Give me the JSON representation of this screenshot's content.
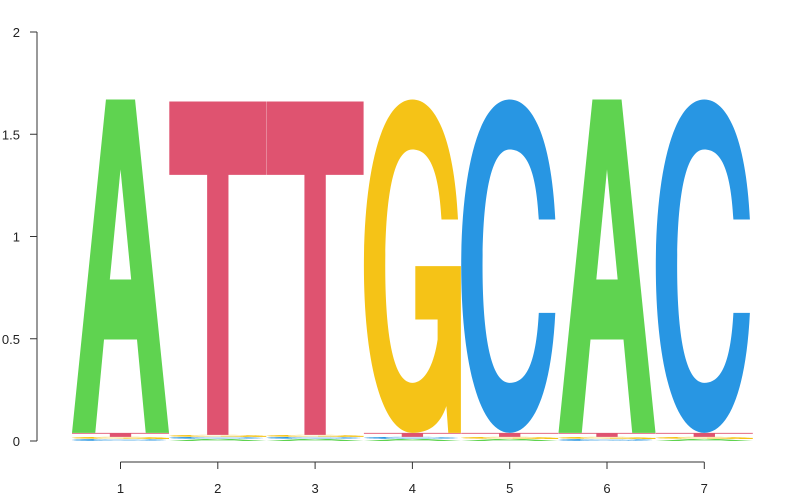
{
  "chart_data": {
    "type": "sequence-logo",
    "title": "",
    "xlabel": "",
    "ylabel": "",
    "ylim": [
      0,
      2
    ],
    "y_ticks": [
      0,
      0.5,
      1,
      1.5,
      2
    ],
    "y_tick_labels": [
      "0",
      "0.5",
      "1",
      "1.5",
      "2"
    ],
    "positions": [
      1,
      2,
      3,
      4,
      5,
      6,
      7
    ],
    "x_tick_labels": [
      "1",
      "2",
      "3",
      "4",
      "5",
      "6",
      "7"
    ],
    "colors": {
      "A": "#5fd350",
      "C": "#2896e3",
      "G": "#f5c317",
      "T": "#df5370"
    },
    "columns": [
      [
        {
          "letter": "C",
          "height": 0.01
        },
        {
          "letter": "G",
          "height": 0.01
        },
        {
          "letter": "T",
          "height": 0.02
        },
        {
          "letter": "A",
          "height": 1.63
        }
      ],
      [
        {
          "letter": "A",
          "height": 0.01
        },
        {
          "letter": "C",
          "height": 0.01
        },
        {
          "letter": "G",
          "height": 0.01
        },
        {
          "letter": "T",
          "height": 1.63
        }
      ],
      [
        {
          "letter": "A",
          "height": 0.01
        },
        {
          "letter": "C",
          "height": 0.01
        },
        {
          "letter": "G",
          "height": 0.01
        },
        {
          "letter": "T",
          "height": 1.63
        }
      ],
      [
        {
          "letter": "A",
          "height": 0.01
        },
        {
          "letter": "C",
          "height": 0.01
        },
        {
          "letter": "T",
          "height": 0.02
        },
        {
          "letter": "G",
          "height": 1.63
        }
      ],
      [
        {
          "letter": "A",
          "height": 0.01
        },
        {
          "letter": "G",
          "height": 0.01
        },
        {
          "letter": "T",
          "height": 0.02
        },
        {
          "letter": "C",
          "height": 1.63
        }
      ],
      [
        {
          "letter": "C",
          "height": 0.01
        },
        {
          "letter": "G",
          "height": 0.01
        },
        {
          "letter": "T",
          "height": 0.02
        },
        {
          "letter": "A",
          "height": 1.63
        }
      ],
      [
        {
          "letter": "A",
          "height": 0.01
        },
        {
          "letter": "G",
          "height": 0.01
        },
        {
          "letter": "T",
          "height": 0.02
        },
        {
          "letter": "C",
          "height": 1.63
        }
      ]
    ]
  }
}
